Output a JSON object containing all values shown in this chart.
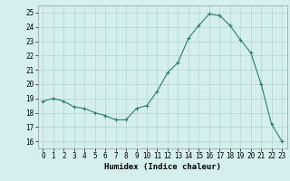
{
  "x": [
    0,
    1,
    2,
    3,
    4,
    5,
    6,
    7,
    8,
    9,
    10,
    11,
    12,
    13,
    14,
    15,
    16,
    17,
    18,
    19,
    20,
    21,
    22,
    23
  ],
  "y": [
    18.8,
    19.0,
    18.8,
    18.4,
    18.3,
    18.0,
    17.8,
    17.5,
    17.5,
    18.3,
    18.5,
    19.5,
    20.8,
    21.5,
    23.2,
    24.1,
    24.9,
    24.8,
    24.1,
    23.1,
    22.2,
    20.0,
    17.2,
    16.0
  ],
  "xlim": [
    -0.5,
    23.5
  ],
  "ylim": [
    15.5,
    25.5
  ],
  "yticks": [
    16,
    17,
    18,
    19,
    20,
    21,
    22,
    23,
    24,
    25
  ],
  "xticks": [
    0,
    1,
    2,
    3,
    4,
    5,
    6,
    7,
    8,
    9,
    10,
    11,
    12,
    13,
    14,
    15,
    16,
    17,
    18,
    19,
    20,
    21,
    22,
    23
  ],
  "xlabel": "Humidex (Indice chaleur)",
  "line_color": "#2a7d6e",
  "marker": "+",
  "marker_size": 3,
  "bg_color": "#d5efef",
  "grid_color": "#b8d8d5",
  "tick_fontsize": 5.5,
  "xlabel_fontsize": 6.5
}
